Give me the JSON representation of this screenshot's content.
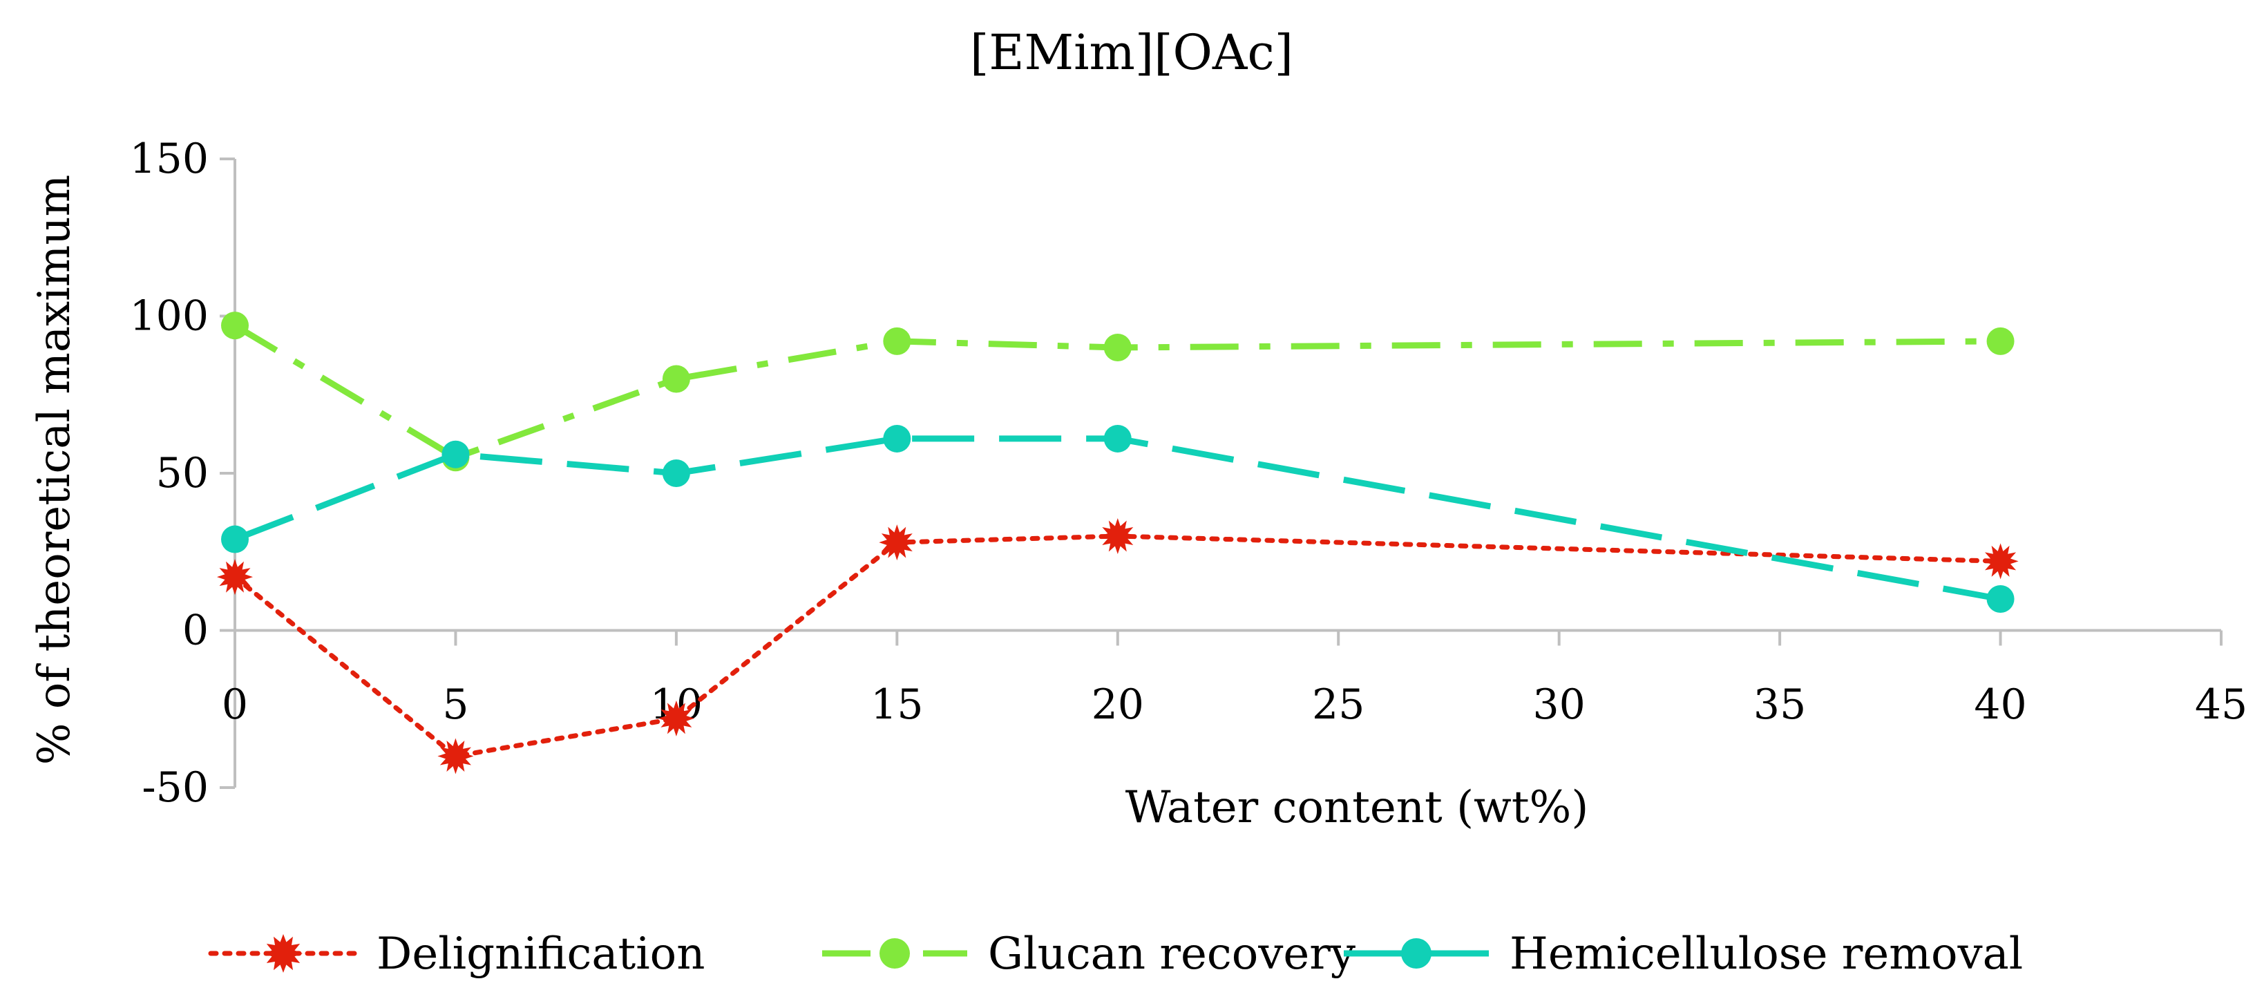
{
  "chart_data": {
    "type": "line",
    "title": "[EMim][OAc]",
    "xlabel": "Water content (wt%)",
    "ylabel": "% of theoretical maximum",
    "xlim": [
      0,
      45
    ],
    "ylim": [
      -50,
      150
    ],
    "x_ticks": [
      0,
      5,
      10,
      15,
      20,
      25,
      30,
      35,
      40,
      45
    ],
    "y_ticks": [
      -50,
      0,
      50,
      100,
      150
    ],
    "x_tick_labels": [
      "0",
      "5",
      "10",
      "15",
      "20",
      "25",
      "30",
      "35",
      "40",
      "45"
    ],
    "y_tick_labels": [
      "-50",
      "0",
      "50",
      "100",
      "150"
    ],
    "grid": false,
    "legend_position": "bottom",
    "x": [
      0,
      5,
      10,
      15,
      20,
      40
    ],
    "series": [
      {
        "name": "Delignification",
        "color": "#e2200c",
        "line_style": "dotted",
        "marker": "starburst",
        "values": [
          17,
          -40,
          -28,
          28,
          30,
          22
        ]
      },
      {
        "name": "Glucan recovery",
        "color": "#82e83c",
        "line_style": "dash-dot",
        "marker": "circle",
        "values": [
          97,
          55,
          80,
          92,
          90,
          92
        ]
      },
      {
        "name": "Hemicellulose removal",
        "color": "#10d0b6",
        "line_style": "long-dash",
        "marker": "circle",
        "values": [
          29,
          56,
          50,
          61,
          61,
          10
        ]
      }
    ]
  }
}
